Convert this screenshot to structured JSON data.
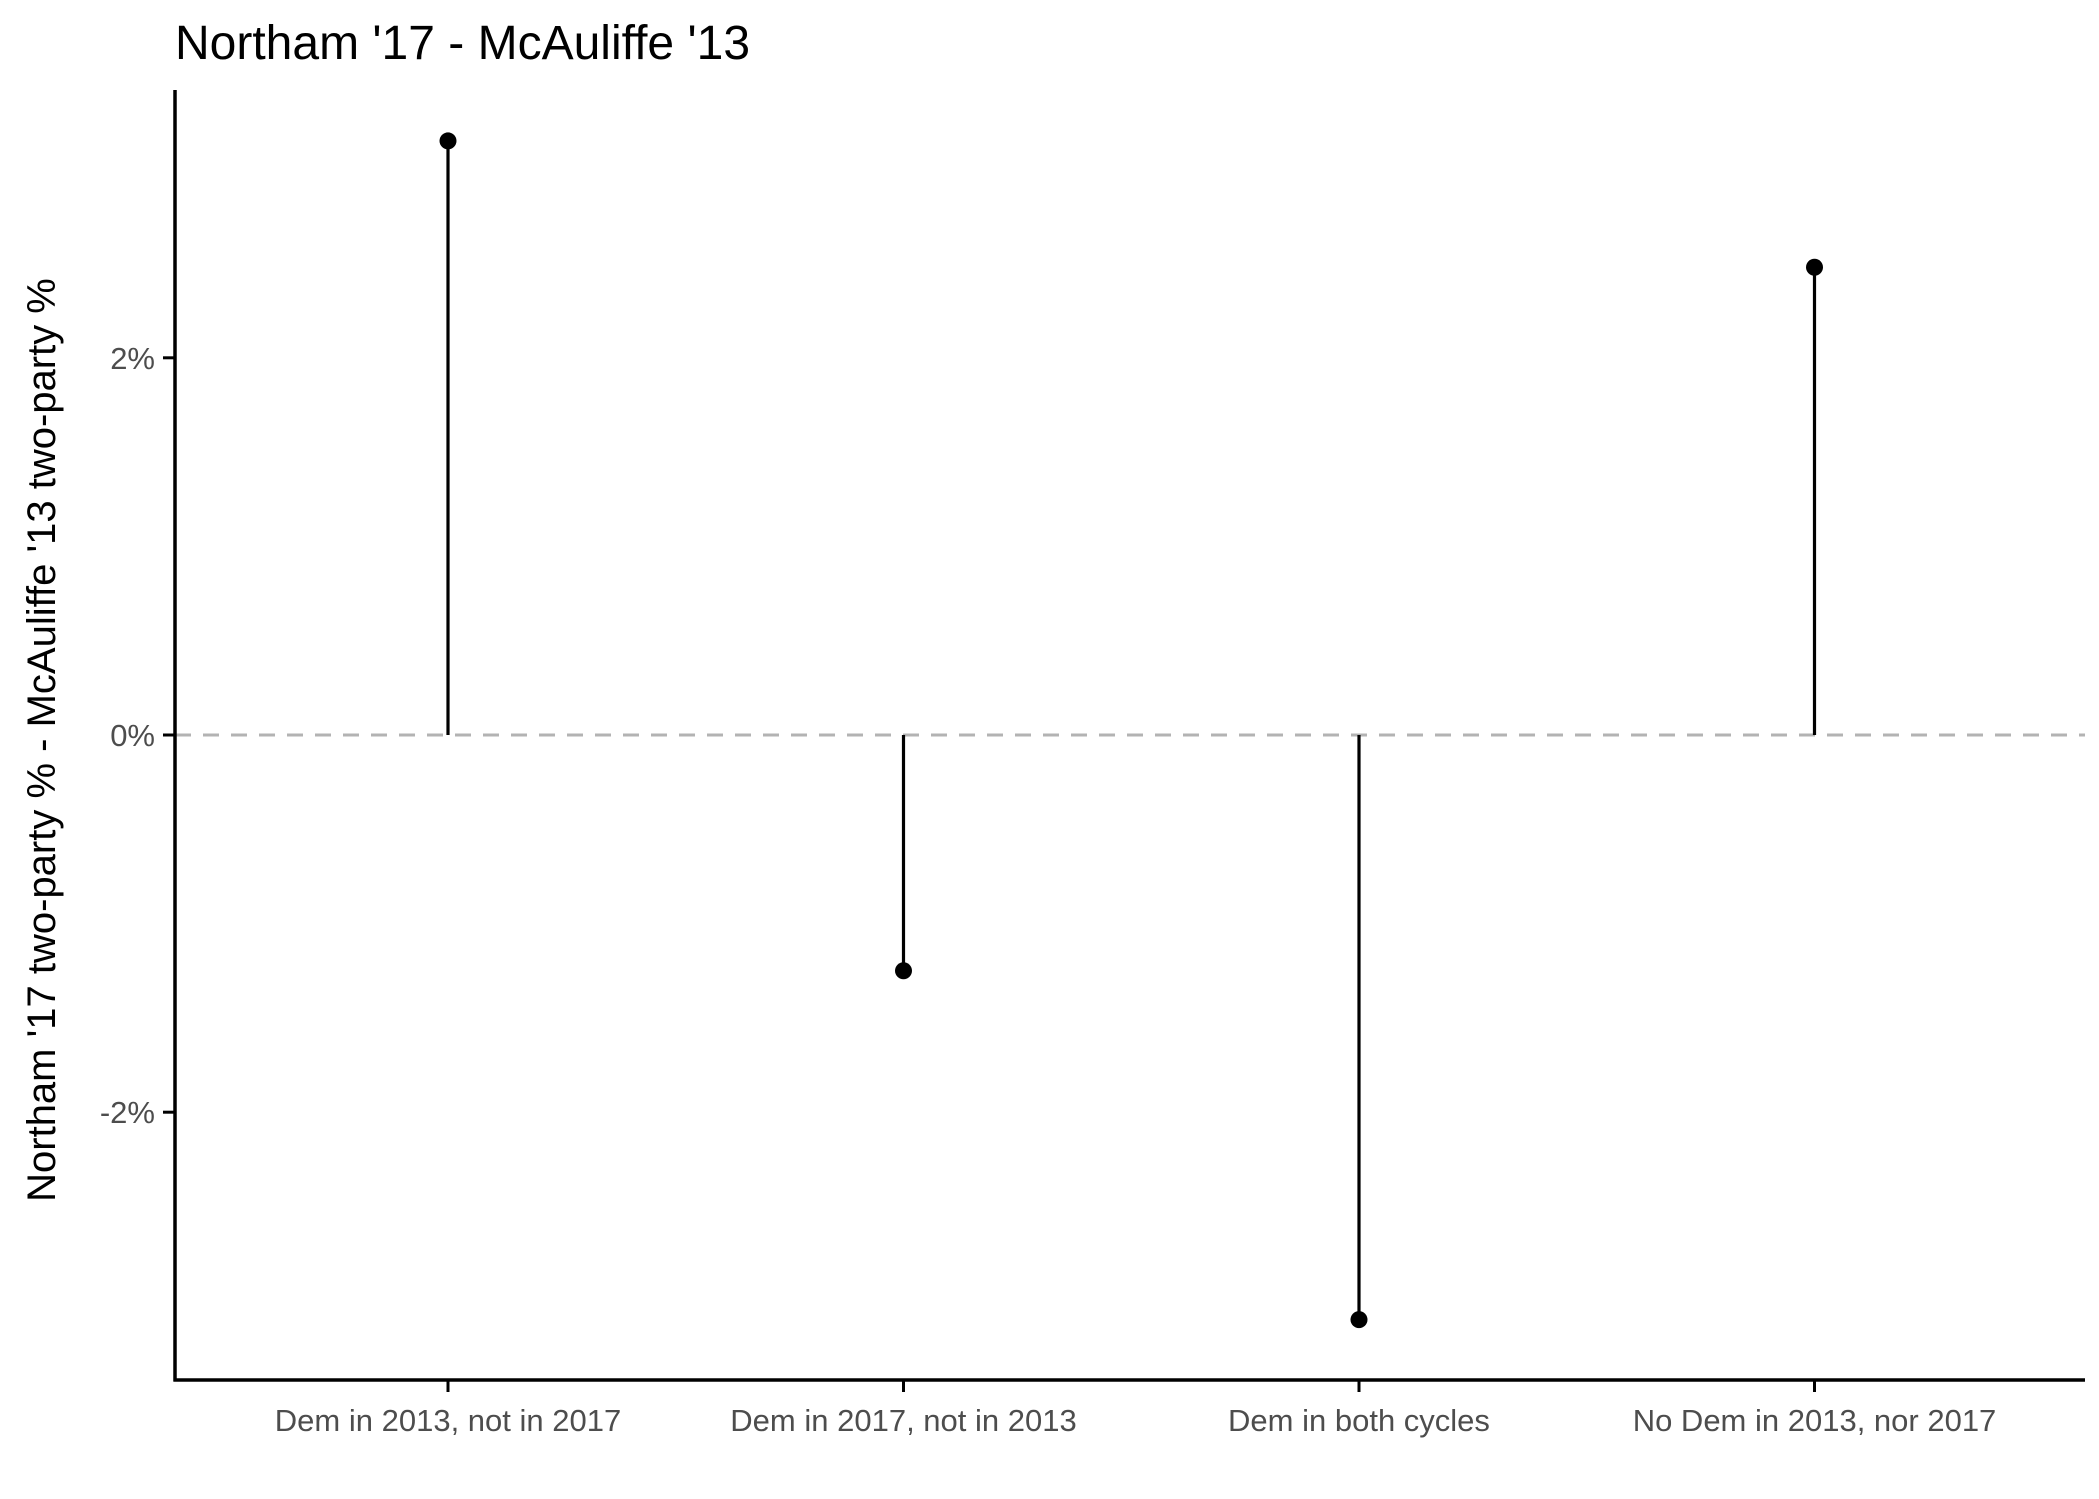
{
  "chart_data": {
    "type": "lollipop",
    "title": "Northam '17 - McAuliffe '13",
    "xlabel": "",
    "ylabel": "Northam '17 two-party % - McAuliffe '13 two-party %",
    "categories": [
      "Dem in 2013, not in 2017",
      "Dem in 2017, not in 2013",
      "Dem in both cycles",
      "No Dem in 2013, nor 2017"
    ],
    "values": [
      3.15,
      -1.25,
      -3.1,
      2.48
    ],
    "ylim": [
      -3.42,
      3.42
    ],
    "yticks": [
      {
        "value": 2,
        "label": "2%"
      },
      {
        "value": 0,
        "label": "0%"
      },
      {
        "value": -2,
        "label": "-2%"
      }
    ],
    "reference_line": {
      "value": 0,
      "style": "dashed",
      "color": "#b3b3b3"
    },
    "grid": false,
    "legend": "none",
    "colors": {
      "points": "#000000",
      "stems": "#000000",
      "axis": "#000000",
      "tick_labels": "#4d4d4d"
    }
  }
}
